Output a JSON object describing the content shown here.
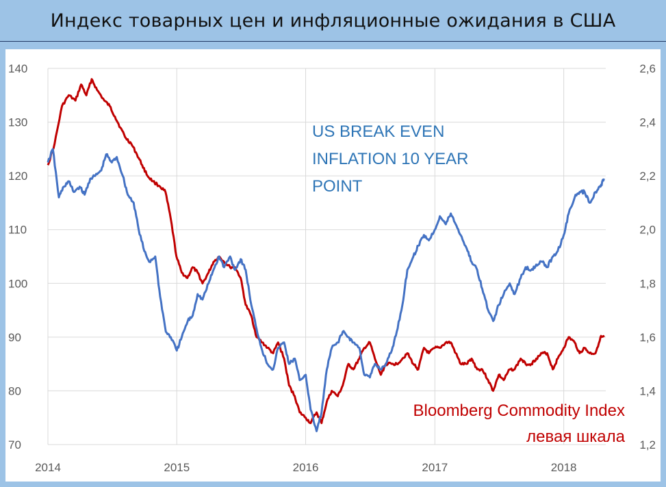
{
  "title": "Индекс товарных цен и инфляционные ожидания в США",
  "chart_data": {
    "type": "line",
    "x": {
      "range": [
        "2014-01-01",
        "2018-04-30"
      ],
      "tick_labels": [
        "2014",
        "2015",
        "2016",
        "2017",
        "2018"
      ],
      "grid": true
    },
    "y_left": {
      "range": [
        70,
        140
      ],
      "ticks": [
        70,
        80,
        90,
        100,
        110,
        120,
        130,
        140
      ],
      "tick_labels": [
        "70",
        "80",
        "90",
        "100",
        "110",
        "120",
        "130",
        "140"
      ]
    },
    "y_right": {
      "range": [
        1.2,
        2.6
      ],
      "ticks": [
        1.2,
        1.4,
        1.6,
        1.8,
        2.0,
        2.2,
        2.4,
        2.6
      ],
      "tick_labels": [
        "1,2",
        "1,4",
        "1,6",
        "1,8",
        "2,0",
        "2,2",
        "2,4",
        "2,6"
      ]
    },
    "grid": true,
    "annotations": {
      "breakeven": [
        "US BREAK EVEN",
        "INFLATION 10 YEAR",
        "POINT"
      ],
      "commodity": [
        "Bloomberg Commodity Index",
        "левая шкала"
      ]
    },
    "series": [
      {
        "key": "bcom",
        "axis": "left",
        "color": "#c00000",
        "points": [
          [
            "2014-01-01",
            122
          ],
          [
            "2014-01-20",
            126
          ],
          [
            "2014-02-10",
            133
          ],
          [
            "2014-03-01",
            135
          ],
          [
            "2014-03-20",
            134
          ],
          [
            "2014-04-05",
            137
          ],
          [
            "2014-04-20",
            135
          ],
          [
            "2014-05-05",
            138
          ],
          [
            "2014-05-20",
            136
          ],
          [
            "2014-06-10",
            134
          ],
          [
            "2014-06-25",
            133
          ],
          [
            "2014-07-10",
            131
          ],
          [
            "2014-07-25",
            129
          ],
          [
            "2014-08-10",
            127
          ],
          [
            "2014-08-25",
            126
          ],
          [
            "2014-09-10",
            124
          ],
          [
            "2014-09-25",
            122
          ],
          [
            "2014-10-10",
            120
          ],
          [
            "2014-10-25",
            119
          ],
          [
            "2014-11-15",
            118
          ],
          [
            "2014-11-30",
            117
          ],
          [
            "2014-12-15",
            112
          ],
          [
            "2014-12-31",
            105
          ],
          [
            "2015-01-15",
            102
          ],
          [
            "2015-01-31",
            101
          ],
          [
            "2015-02-15",
            103
          ],
          [
            "2015-03-01",
            102
          ],
          [
            "2015-03-15",
            100
          ],
          [
            "2015-04-01",
            102
          ],
          [
            "2015-04-15",
            104
          ],
          [
            "2015-05-01",
            105
          ],
          [
            "2015-05-15",
            104
          ],
          [
            "2015-06-01",
            103
          ],
          [
            "2015-06-15",
            103
          ],
          [
            "2015-07-01",
            101
          ],
          [
            "2015-07-15",
            96
          ],
          [
            "2015-07-31",
            94
          ],
          [
            "2015-08-15",
            90
          ],
          [
            "2015-08-31",
            89
          ],
          [
            "2015-09-15",
            88
          ],
          [
            "2015-10-01",
            87
          ],
          [
            "2015-10-15",
            89
          ],
          [
            "2015-11-01",
            86
          ],
          [
            "2015-11-15",
            81
          ],
          [
            "2015-12-01",
            79
          ],
          [
            "2015-12-15",
            76
          ],
          [
            "2016-01-01",
            75
          ],
          [
            "2016-01-15",
            74
          ],
          [
            "2016-02-01",
            76
          ],
          [
            "2016-02-15",
            74
          ],
          [
            "2016-03-01",
            78
          ],
          [
            "2016-03-15",
            80
          ],
          [
            "2016-04-01",
            79
          ],
          [
            "2016-04-15",
            81
          ],
          [
            "2016-05-01",
            85
          ],
          [
            "2016-05-15",
            84
          ],
          [
            "2016-06-01",
            86
          ],
          [
            "2016-06-15",
            88
          ],
          [
            "2016-07-01",
            89
          ],
          [
            "2016-07-15",
            86
          ],
          [
            "2016-08-01",
            83
          ],
          [
            "2016-08-15",
            85
          ],
          [
            "2016-09-01",
            85
          ],
          [
            "2016-09-15",
            85
          ],
          [
            "2016-10-01",
            86
          ],
          [
            "2016-10-15",
            87
          ],
          [
            "2016-11-01",
            85
          ],
          [
            "2016-11-15",
            84
          ],
          [
            "2016-12-01",
            88
          ],
          [
            "2016-12-15",
            87
          ],
          [
            "2017-01-01",
            88
          ],
          [
            "2017-01-15",
            88
          ],
          [
            "2017-02-01",
            89
          ],
          [
            "2017-02-15",
            89
          ],
          [
            "2017-03-01",
            87
          ],
          [
            "2017-03-15",
            85
          ],
          [
            "2017-04-01",
            85
          ],
          [
            "2017-04-15",
            86
          ],
          [
            "2017-05-01",
            84
          ],
          [
            "2017-05-15",
            84
          ],
          [
            "2017-06-01",
            82
          ],
          [
            "2017-06-15",
            80
          ],
          [
            "2017-07-01",
            83
          ],
          [
            "2017-07-15",
            82
          ],
          [
            "2017-08-01",
            84
          ],
          [
            "2017-08-15",
            84
          ],
          [
            "2017-09-01",
            86
          ],
          [
            "2017-09-15",
            85
          ],
          [
            "2017-10-01",
            85
          ],
          [
            "2017-10-15",
            86
          ],
          [
            "2017-11-01",
            87
          ],
          [
            "2017-11-15",
            87
          ],
          [
            "2017-12-01",
            84
          ],
          [
            "2017-12-15",
            86
          ],
          [
            "2018-01-01",
            88
          ],
          [
            "2018-01-15",
            90
          ],
          [
            "2018-02-01",
            89
          ],
          [
            "2018-02-15",
            87
          ],
          [
            "2018-03-01",
            88
          ],
          [
            "2018-03-15",
            87
          ],
          [
            "2018-04-01",
            87
          ],
          [
            "2018-04-15",
            90
          ],
          [
            "2018-04-25",
            90
          ]
        ]
      },
      {
        "key": "breakeven",
        "axis": "right",
        "color": "#4472c4",
        "points": [
          [
            "2014-01-01",
            2.25
          ],
          [
            "2014-01-15",
            2.3
          ],
          [
            "2014-02-01",
            2.12
          ],
          [
            "2014-02-15",
            2.16
          ],
          [
            "2014-03-01",
            2.18
          ],
          [
            "2014-03-15",
            2.14
          ],
          [
            "2014-04-01",
            2.16
          ],
          [
            "2014-04-15",
            2.13
          ],
          [
            "2014-05-01",
            2.19
          ],
          [
            "2014-05-15",
            2.2
          ],
          [
            "2014-06-01",
            2.22
          ],
          [
            "2014-06-15",
            2.28
          ],
          [
            "2014-07-01",
            2.25
          ],
          [
            "2014-07-15",
            2.27
          ],
          [
            "2014-08-01",
            2.2
          ],
          [
            "2014-08-15",
            2.13
          ],
          [
            "2014-09-01",
            2.1
          ],
          [
            "2014-09-15",
            2.0
          ],
          [
            "2014-10-01",
            1.92
          ],
          [
            "2014-10-15",
            1.88
          ],
          [
            "2014-11-01",
            1.9
          ],
          [
            "2014-11-15",
            1.75
          ],
          [
            "2014-12-01",
            1.62
          ],
          [
            "2014-12-15",
            1.6
          ],
          [
            "2015-01-01",
            1.55
          ],
          [
            "2015-01-15",
            1.6
          ],
          [
            "2015-02-01",
            1.66
          ],
          [
            "2015-02-15",
            1.68
          ],
          [
            "2015-03-01",
            1.76
          ],
          [
            "2015-03-15",
            1.74
          ],
          [
            "2015-04-01",
            1.8
          ],
          [
            "2015-04-15",
            1.85
          ],
          [
            "2015-05-01",
            1.9
          ],
          [
            "2015-05-15",
            1.86
          ],
          [
            "2015-06-01",
            1.9
          ],
          [
            "2015-06-15",
            1.85
          ],
          [
            "2015-07-01",
            1.89
          ],
          [
            "2015-07-15",
            1.85
          ],
          [
            "2015-07-31",
            1.72
          ],
          [
            "2015-08-15",
            1.63
          ],
          [
            "2015-08-31",
            1.55
          ],
          [
            "2015-09-15",
            1.5
          ],
          [
            "2015-10-01",
            1.48
          ],
          [
            "2015-10-15",
            1.56
          ],
          [
            "2015-11-01",
            1.58
          ],
          [
            "2015-11-15",
            1.5
          ],
          [
            "2015-12-01",
            1.52
          ],
          [
            "2015-12-15",
            1.44
          ],
          [
            "2016-01-01",
            1.46
          ],
          [
            "2016-01-15",
            1.33
          ],
          [
            "2016-02-01",
            1.25
          ],
          [
            "2016-02-15",
            1.32
          ],
          [
            "2016-03-01",
            1.48
          ],
          [
            "2016-03-15",
            1.56
          ],
          [
            "2016-04-01",
            1.58
          ],
          [
            "2016-04-15",
            1.62
          ],
          [
            "2016-05-01",
            1.6
          ],
          [
            "2016-05-15",
            1.58
          ],
          [
            "2016-06-01",
            1.56
          ],
          [
            "2016-06-15",
            1.46
          ],
          [
            "2016-07-01",
            1.45
          ],
          [
            "2016-07-15",
            1.5
          ],
          [
            "2016-08-01",
            1.48
          ],
          [
            "2016-08-15",
            1.5
          ],
          [
            "2016-09-01",
            1.55
          ],
          [
            "2016-09-15",
            1.62
          ],
          [
            "2016-10-01",
            1.72
          ],
          [
            "2016-10-15",
            1.85
          ],
          [
            "2016-11-01",
            1.9
          ],
          [
            "2016-11-15",
            1.94
          ],
          [
            "2016-12-01",
            1.98
          ],
          [
            "2016-12-15",
            1.96
          ],
          [
            "2017-01-01",
            2.0
          ],
          [
            "2017-01-15",
            2.05
          ],
          [
            "2017-02-01",
            2.02
          ],
          [
            "2017-02-15",
            2.06
          ],
          [
            "2017-03-01",
            2.02
          ],
          [
            "2017-03-15",
            1.98
          ],
          [
            "2017-04-01",
            1.93
          ],
          [
            "2017-04-15",
            1.88
          ],
          [
            "2017-05-01",
            1.85
          ],
          [
            "2017-05-15",
            1.78
          ],
          [
            "2017-06-01",
            1.7
          ],
          [
            "2017-06-15",
            1.66
          ],
          [
            "2017-07-01",
            1.72
          ],
          [
            "2017-07-15",
            1.76
          ],
          [
            "2017-08-01",
            1.8
          ],
          [
            "2017-08-15",
            1.76
          ],
          [
            "2017-09-01",
            1.82
          ],
          [
            "2017-09-15",
            1.86
          ],
          [
            "2017-10-01",
            1.85
          ],
          [
            "2017-10-15",
            1.87
          ],
          [
            "2017-11-01",
            1.88
          ],
          [
            "2017-11-15",
            1.86
          ],
          [
            "2017-12-01",
            1.9
          ],
          [
            "2017-12-15",
            1.92
          ],
          [
            "2018-01-01",
            1.98
          ],
          [
            "2018-01-15",
            2.06
          ],
          [
            "2018-02-01",
            2.12
          ],
          [
            "2018-02-15",
            2.14
          ],
          [
            "2018-03-01",
            2.14
          ],
          [
            "2018-03-15",
            2.1
          ],
          [
            "2018-04-01",
            2.14
          ],
          [
            "2018-04-15",
            2.16
          ],
          [
            "2018-04-25",
            2.19
          ]
        ]
      }
    ]
  }
}
